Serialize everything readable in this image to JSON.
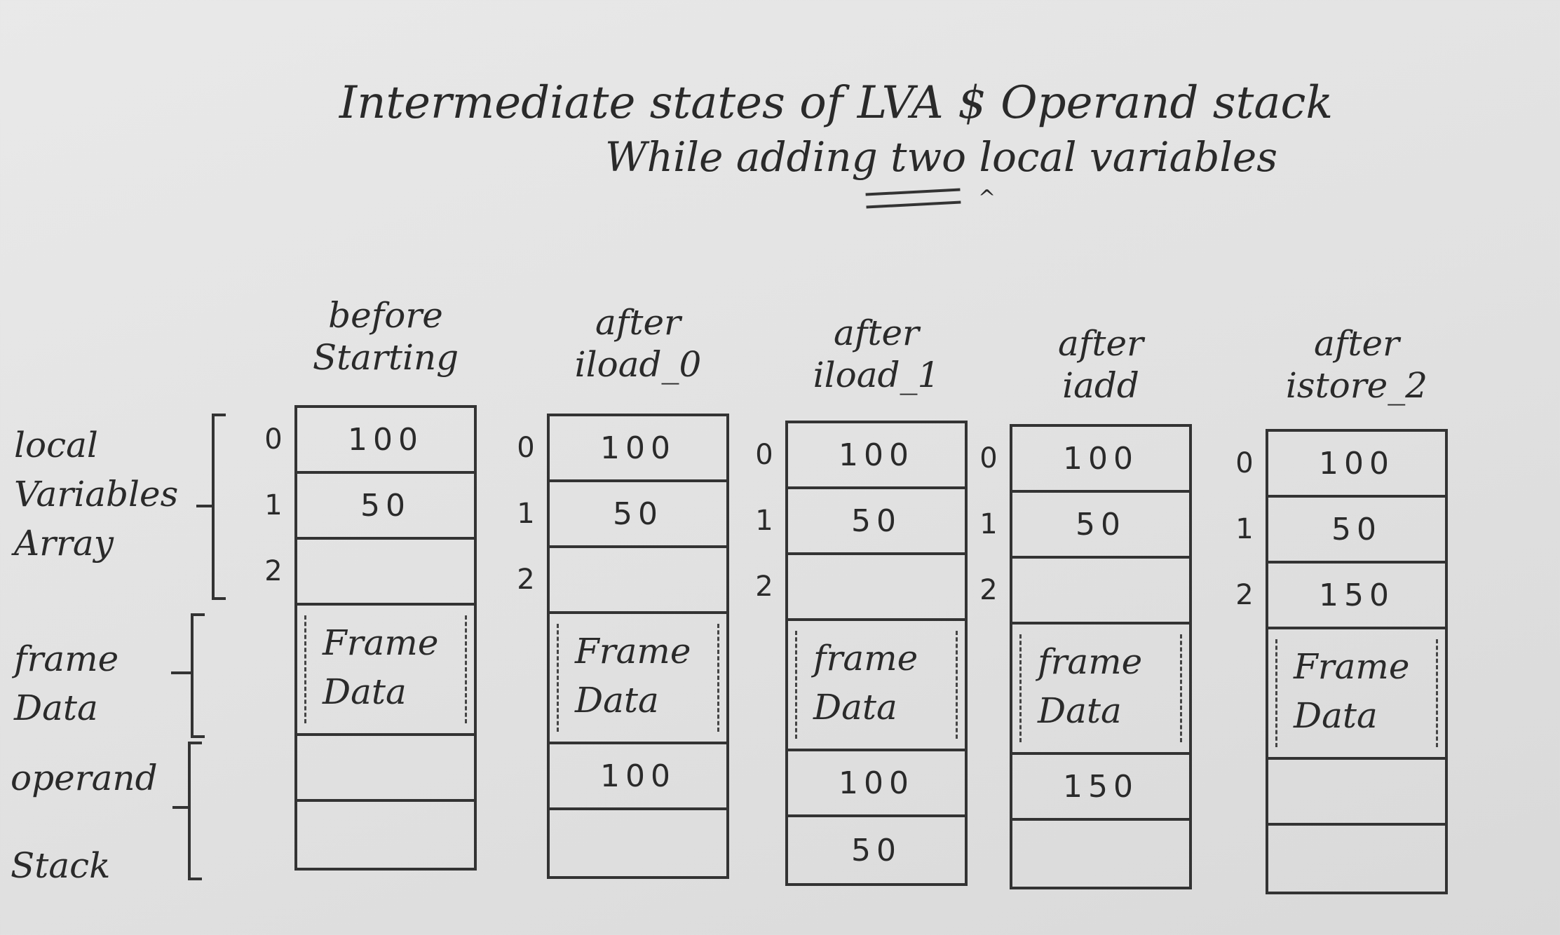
{
  "title": {
    "line1": "Intermediate states of LVA $ Operand stack",
    "line2": "While adding two local variables"
  },
  "labels": {
    "lva": [
      "local",
      "Variables",
      "Array"
    ],
    "frame_data": [
      "frame",
      "Data"
    ],
    "operand": [
      "operand",
      "Stack"
    ]
  },
  "columns": [
    {
      "head": [
        "before",
        "Starting"
      ],
      "indices": [
        "0",
        "1",
        "2"
      ],
      "lva": [
        "100",
        "50",
        ""
      ],
      "frame": [
        "Frame",
        "Data"
      ],
      "operand": [
        "",
        ""
      ]
    },
    {
      "head": [
        "after",
        "iload_0"
      ],
      "indices": [
        "0",
        "1",
        "2"
      ],
      "lva": [
        "100",
        "50",
        ""
      ],
      "frame": [
        "Frame",
        "Data"
      ],
      "operand": [
        "100",
        ""
      ]
    },
    {
      "head": [
        "after",
        "iload_1"
      ],
      "indices": [
        "0",
        "1",
        "2"
      ],
      "lva": [
        "100",
        "50",
        ""
      ],
      "frame": [
        "frame",
        "Data"
      ],
      "operand": [
        "100",
        "50"
      ]
    },
    {
      "head": [
        "after",
        "iadd"
      ],
      "indices": [
        "0",
        "1",
        "2"
      ],
      "lva": [
        "100",
        "50",
        ""
      ],
      "frame": [
        "frame",
        "Data"
      ],
      "operand": [
        "150",
        ""
      ]
    },
    {
      "head": [
        "after",
        "istore_2"
      ],
      "indices": [
        "0",
        "1",
        "2"
      ],
      "lva": [
        "100",
        "50",
        "150"
      ],
      "frame": [
        "Frame",
        "Data"
      ],
      "operand": [
        "",
        ""
      ]
    }
  ]
}
